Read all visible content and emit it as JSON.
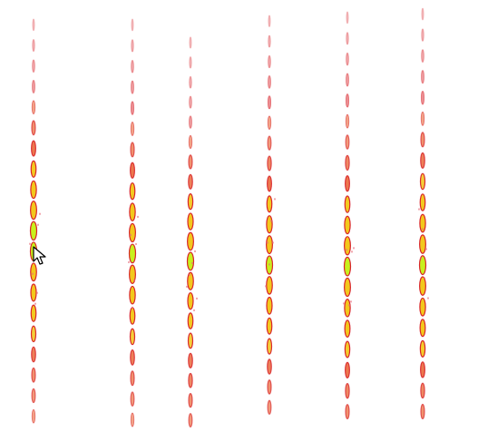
{
  "colors": {
    "background": "#ffffff",
    "dash_outline": "#d8232a",
    "dash_fill_cool": "#e85c2a",
    "dash_fill_warm": "#f2c81c",
    "dash_fill_hot": "#c8f01c",
    "speckle": "#e86a78"
  },
  "icons": {
    "cursor": "arrow-pointer-icon"
  },
  "strands": [
    {
      "name": "strand-1",
      "intensity": [
        0.05,
        0.1,
        0.15,
        0.2,
        0.3,
        0.4,
        0.55,
        0.7,
        0.85,
        0.95,
        1.0,
        1.0,
        0.9,
        0.8,
        0.7,
        0.6,
        0.5,
        0.4,
        0.35,
        0.3
      ]
    },
    {
      "name": "strand-2",
      "intensity": [
        0.05,
        0.1,
        0.15,
        0.2,
        0.25,
        0.3,
        0.4,
        0.55,
        0.7,
        0.85,
        0.95,
        1.0,
        0.95,
        0.85,
        0.7,
        0.6,
        0.5,
        0.4,
        0.35,
        0.3
      ]
    },
    {
      "name": "strand-3",
      "intensity": [
        0.05,
        0.08,
        0.12,
        0.15,
        0.2,
        0.3,
        0.4,
        0.5,
        0.65,
        0.8,
        0.95,
        1.0,
        0.9,
        0.8,
        0.7,
        0.6,
        0.5,
        0.45,
        0.4,
        0.35
      ]
    },
    {
      "name": "strand-4",
      "intensity": [
        0.05,
        0.1,
        0.15,
        0.2,
        0.25,
        0.3,
        0.35,
        0.45,
        0.55,
        0.7,
        0.85,
        0.95,
        1.0,
        0.9,
        0.8,
        0.7,
        0.6,
        0.5,
        0.4,
        0.35
      ]
    },
    {
      "name": "strand-5",
      "intensity": [
        0.05,
        0.1,
        0.15,
        0.2,
        0.25,
        0.3,
        0.35,
        0.45,
        0.55,
        0.7,
        0.85,
        0.95,
        1.0,
        0.95,
        0.85,
        0.75,
        0.65,
        0.55,
        0.45,
        0.4
      ]
    },
    {
      "name": "strand-6",
      "intensity": [
        0.05,
        0.1,
        0.15,
        0.2,
        0.25,
        0.3,
        0.4,
        0.5,
        0.6,
        0.7,
        0.85,
        0.95,
        1.0,
        0.95,
        0.85,
        0.75,
        0.65,
        0.55,
        0.45,
        0.4
      ]
    }
  ]
}
